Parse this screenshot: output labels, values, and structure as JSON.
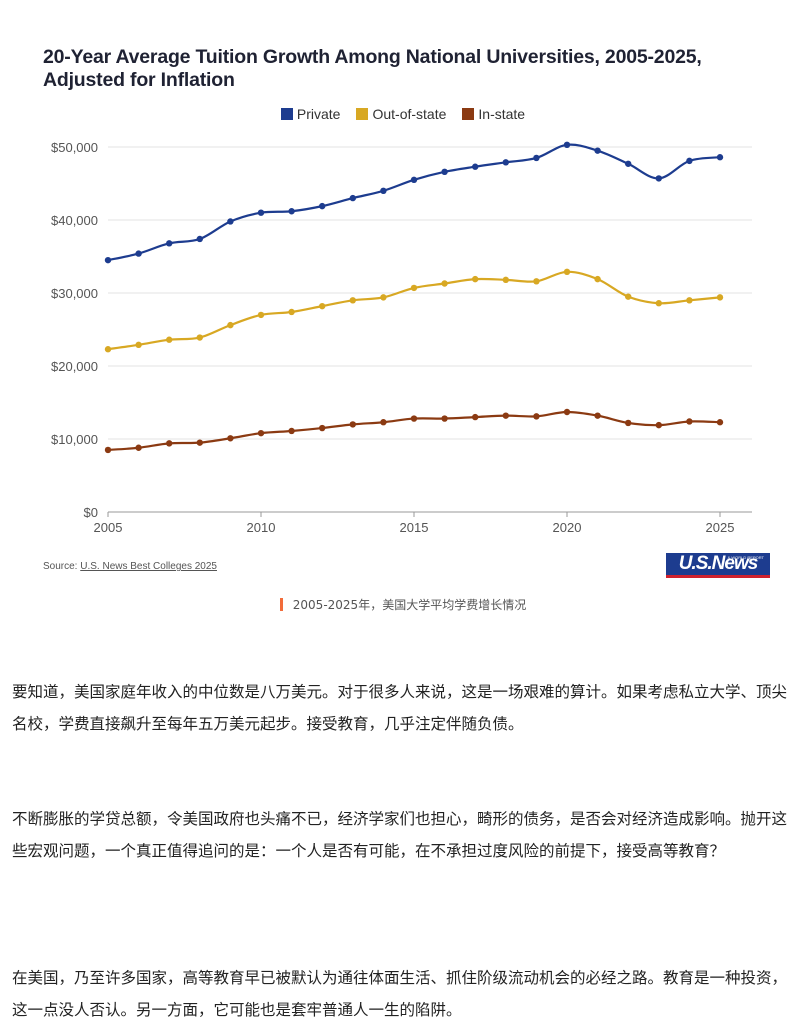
{
  "chart_data": {
    "type": "line",
    "title": "20-Year Average Tuition Growth Among National Universities, 2005-2025, Adjusted for Inflation",
    "x": [
      2005,
      2006,
      2007,
      2008,
      2009,
      2010,
      2011,
      2012,
      2013,
      2014,
      2015,
      2016,
      2017,
      2018,
      2019,
      2020,
      2021,
      2022,
      2023,
      2024,
      2025
    ],
    "series": [
      {
        "name": "Private",
        "color": "#1d3c8f",
        "values": [
          34500,
          35400,
          36800,
          37400,
          39800,
          41000,
          41200,
          41900,
          43000,
          44000,
          45500,
          46600,
          47300,
          47900,
          48500,
          50300,
          49500,
          47700,
          45700,
          48100,
          48600
        ]
      },
      {
        "name": "Out-of-state",
        "color": "#d8a823",
        "values": [
          22300,
          22900,
          23600,
          23900,
          25600,
          27000,
          27400,
          28200,
          29000,
          29400,
          30700,
          31300,
          31900,
          31800,
          31600,
          32900,
          31900,
          29500,
          28600,
          29000,
          29400
        ]
      },
      {
        "name": "In-state",
        "color": "#8b3a12",
        "values": [
          8500,
          8800,
          9400,
          9500,
          10100,
          10800,
          11100,
          11500,
          12000,
          12300,
          12800,
          12800,
          13000,
          13200,
          13100,
          13700,
          13200,
          12200,
          11900,
          12400,
          12300
        ]
      }
    ],
    "xticks": [
      2005,
      2010,
      2015,
      2020,
      2025
    ],
    "xtick_labels": [
      "2005",
      "2010",
      "2015",
      "2020",
      "2025"
    ],
    "yticks": [
      0,
      10000,
      20000,
      30000,
      40000,
      50000
    ],
    "ytick_labels": [
      "$0",
      "$10,000",
      "$20,000",
      "$30,000",
      "$40,000",
      "$50,000"
    ],
    "xlim": [
      2005,
      2025
    ],
    "ylim": [
      0,
      50000
    ],
    "xlabel": "",
    "ylabel": "",
    "grid": true,
    "legend_position": "top-center"
  },
  "source": {
    "prefix": "Source: ",
    "link_text": "U.S. News Best Colleges 2025"
  },
  "logo": {
    "text": "U.S.News",
    "small": "& WORLD REPORT"
  },
  "caption": "2005-2025年，美国大学平均学费增长情况",
  "article": {
    "paragraphs": [
      "要知道，美国家庭年收入的中位数是八万美元。对于很多人来说，这是一场艰难的算计。如果考虑私立大学、顶尖名校，学费直接飙升至每年五万美元起步。接受教育，几乎注定伴随负债。",
      "不断膨胀的学贷总额，令美国政府也头痛不已，经济学家们也担心，畸形的债务，是否会对经济造成影响。抛开这些宏观问题，一个真正值得追问的是：一个人是否有可能，在不承担过度风险的前提下，接受高等教育？",
      "在美国，乃至许多国家，高等教育早已被默认为通往体面生活、抓住阶级流动机会的必经之路。教育是一种投资，这一点没人否认。另一方面，它可能也是套牢普通人一生的陷阱。"
    ]
  }
}
